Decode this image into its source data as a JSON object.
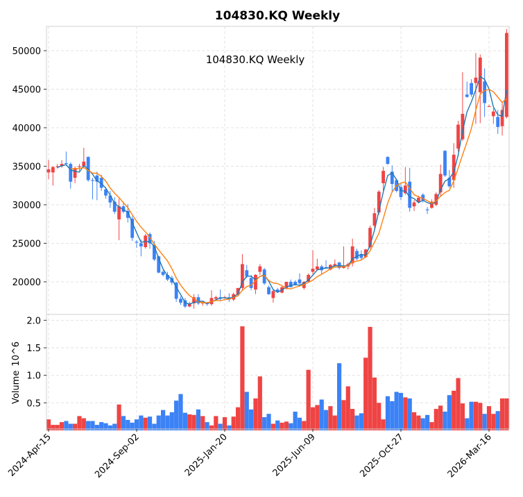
{
  "title": "104830.KQ  Weekly",
  "inner_title": "104830.KQ  Weekly",
  "colors": {
    "up": "#ef4444",
    "down": "#3b82f6",
    "ma_short": "#1f77b4",
    "ma_long": "#ff7f0e"
  },
  "chart_data": {
    "type": "candlestick",
    "title": "104830.KQ  Weekly",
    "ylabel_volume": "Volume",
    "volume_unit": "10^6",
    "price_ylim": [
      15800,
      53200
    ],
    "price_ticks": [
      "20000",
      "25000",
      "30000",
      "35000",
      "40000",
      "45000",
      "50000"
    ],
    "volume_ylim": [
      0,
      2.05
    ],
    "volume_ticks": [
      "0.5",
      "1.0",
      "1.5",
      "2.0"
    ],
    "x_tick_labels": [
      {
        "index": 0,
        "label": "2024-Apr-15"
      },
      {
        "index": 20,
        "label": "2024-Sep-02"
      },
      {
        "index": 40,
        "label": "2025-Jan-20"
      },
      {
        "index": 60,
        "label": "2025-Jun-09"
      },
      {
        "index": 80,
        "label": "2025-Oct-27"
      },
      {
        "index": 100,
        "label": "2026-Mar-16"
      }
    ],
    "ma_windows": [
      3,
      6
    ],
    "grid": true,
    "ohlc": [
      [
        34200,
        35800,
        33300,
        34600
      ],
      [
        34200,
        35000,
        32500,
        34900
      ],
      [
        35000,
        35300,
        34700,
        35000
      ],
      [
        35000,
        35800,
        34800,
        35300
      ],
      [
        35400,
        36900,
        35100,
        35300
      ],
      [
        35300,
        35500,
        32100,
        33000
      ],
      [
        33500,
        35000,
        32800,
        34700
      ],
      [
        34900,
        35300,
        34400,
        35000
      ],
      [
        35000,
        37400,
        34800,
        35600
      ],
      [
        36200,
        36300,
        33000,
        33200
      ],
      [
        33200,
        33500,
        30700,
        33100
      ],
      [
        33800,
        34300,
        30600,
        33000
      ],
      [
        33500,
        33900,
        31800,
        32200
      ],
      [
        32000,
        32300,
        30800,
        31200
      ],
      [
        31200,
        31800,
        29600,
        30300
      ],
      [
        30400,
        31000,
        28800,
        29100
      ],
      [
        28100,
        30800,
        25400,
        29800
      ],
      [
        29800,
        30400,
        28900,
        29100
      ],
      [
        29200,
        30100,
        27700,
        28300
      ],
      [
        28200,
        28500,
        25300,
        25700
      ],
      [
        25200,
        25400,
        24400,
        25100
      ],
      [
        25000,
        25500,
        23300,
        24600
      ],
      [
        24500,
        26200,
        24300,
        26000
      ],
      [
        26200,
        26400,
        24300,
        25000
      ],
      [
        24800,
        25300,
        22700,
        22900
      ],
      [
        23300,
        23400,
        21100,
        21200
      ],
      [
        21300,
        21500,
        20700,
        20900
      ],
      [
        20900,
        21300,
        20100,
        20300
      ],
      [
        20500,
        20800,
        19600,
        19900
      ],
      [
        19900,
        20000,
        17400,
        17800
      ],
      [
        17800,
        18100,
        17000,
        17300
      ],
      [
        17600,
        17900,
        16600,
        16800
      ],
      [
        16800,
        17400,
        16700,
        17200
      ],
      [
        17200,
        18400,
        16500,
        18000
      ],
      [
        18000,
        18400,
        17000,
        17200
      ],
      [
        17200,
        17500,
        16900,
        17300
      ],
      [
        17300,
        17400,
        16900,
        17100
      ],
      [
        17100,
        18900,
        16900,
        17900
      ],
      [
        17800,
        18200,
        17700,
        18000
      ],
      [
        18000,
        19000,
        17600,
        17800
      ],
      [
        18000,
        18200,
        17800,
        18000
      ],
      [
        18000,
        18500,
        17400,
        17700
      ],
      [
        17700,
        18600,
        17500,
        18400
      ],
      [
        18400,
        19200,
        18200,
        19200
      ],
      [
        19200,
        23600,
        18800,
        22300
      ],
      [
        21500,
        22200,
        20500,
        20700
      ],
      [
        20500,
        20900,
        18900,
        19200
      ],
      [
        19000,
        21000,
        18400,
        20900
      ],
      [
        21300,
        22300,
        20900,
        22000
      ],
      [
        21600,
        21800,
        19600,
        19800
      ],
      [
        19300,
        19500,
        18300,
        18400
      ],
      [
        17900,
        19000,
        17300,
        18800
      ],
      [
        19000,
        19200,
        18600,
        18700
      ],
      [
        18600,
        19400,
        18500,
        19300
      ],
      [
        19100,
        20000,
        19000,
        20000
      ],
      [
        20000,
        20300,
        19300,
        19300
      ],
      [
        20000,
        20200,
        19500,
        19600
      ],
      [
        20300,
        21100,
        19700,
        19800
      ],
      [
        19200,
        20100,
        19000,
        20000
      ],
      [
        20000,
        21100,
        19900,
        20900
      ],
      [
        21300,
        24100,
        21000,
        21700
      ],
      [
        21600,
        23000,
        21500,
        22000
      ],
      [
        22000,
        22200,
        20900,
        21500
      ],
      [
        21900,
        22800,
        21700,
        21800
      ],
      [
        21600,
        22300,
        21500,
        22200
      ],
      [
        22100,
        22900,
        21900,
        22300
      ],
      [
        22500,
        22600,
        21600,
        21800
      ],
      [
        21800,
        24600,
        21700,
        22100
      ],
      [
        22000,
        22500,
        21600,
        22300
      ],
      [
        22400,
        25600,
        22000,
        24600
      ],
      [
        24000,
        24300,
        22800,
        23000
      ],
      [
        23600,
        24100,
        22900,
        23100
      ],
      [
        23200,
        24300,
        23100,
        24200
      ],
      [
        24500,
        27300,
        24300,
        27000
      ],
      [
        27300,
        29600,
        26800,
        28900
      ],
      [
        29000,
        31900,
        28700,
        31700
      ],
      [
        32800,
        34900,
        31800,
        34400
      ],
      [
        36200,
        36300,
        35200,
        35300
      ],
      [
        34300,
        35100,
        31700,
        32700
      ],
      [
        33200,
        33400,
        31600,
        31800
      ],
      [
        32300,
        32700,
        30600,
        31000
      ],
      [
        31500,
        34900,
        31300,
        32500
      ],
      [
        33000,
        34800,
        29100,
        29600
      ],
      [
        29800,
        30600,
        29200,
        30300
      ],
      [
        30400,
        31200,
        30200,
        30900
      ],
      [
        31300,
        31500,
        30300,
        30600
      ],
      [
        29400,
        29700,
        28800,
        29300
      ],
      [
        29600,
        30700,
        29500,
        30400
      ],
      [
        30000,
        31600,
        29800,
        31400
      ],
      [
        31600,
        35200,
        31100,
        34000
      ],
      [
        37000,
        37100,
        33600,
        33800
      ],
      [
        33500,
        34500,
        32200,
        32400
      ],
      [
        33200,
        38000,
        32200,
        36500
      ],
      [
        37300,
        40900,
        36900,
        40400
      ],
      [
        38500,
        47200,
        38300,
        41800
      ],
      [
        44300,
        46000,
        43900,
        44000
      ],
      [
        45800,
        46300,
        44000,
        44300
      ],
      [
        45800,
        49700,
        40500,
        46500
      ],
      [
        44600,
        49500,
        40600,
        49100
      ],
      [
        46000,
        47700,
        41400,
        43200
      ],
      [
        42800,
        43000,
        42700,
        42800
      ],
      [
        41500,
        42500,
        40500,
        42100
      ],
      [
        41400,
        42300,
        39200,
        40100
      ],
      [
        40200,
        43300,
        39000,
        42300
      ],
      [
        41400,
        52800,
        41200,
        52300
      ]
    ],
    "volume": [
      0.2,
      0.1,
      0.1,
      0.15,
      0.17,
      0.12,
      0.12,
      0.26,
      0.22,
      0.17,
      0.17,
      0.1,
      0.15,
      0.13,
      0.09,
      0.12,
      0.47,
      0.26,
      0.19,
      0.14,
      0.2,
      0.27,
      0.23,
      0.25,
      0.12,
      0.27,
      0.37,
      0.27,
      0.33,
      0.54,
      0.66,
      0.32,
      0.29,
      0.28,
      0.38,
      0.26,
      0.15,
      0.09,
      0.26,
      0.12,
      0.24,
      0.09,
      0.25,
      0.42,
      1.89,
      0.7,
      0.38,
      0.58,
      0.98,
      0.24,
      0.3,
      0.12,
      0.18,
      0.14,
      0.16,
      0.13,
      0.34,
      0.23,
      0.17,
      1.1,
      0.42,
      0.46,
      0.56,
      0.37,
      0.44,
      0.27,
      1.22,
      0.55,
      0.8,
      0.39,
      0.27,
      0.31,
      1.32,
      1.88,
      0.96,
      0.5,
      0.2,
      0.62,
      0.53,
      0.7,
      0.68,
      0.6,
      0.58,
      0.33,
      0.27,
      0.22,
      0.28,
      0.15,
      0.39,
      0.45,
      0.34,
      0.64,
      0.72,
      0.95,
      0.49,
      0.22,
      0.52,
      0.52,
      0.5,
      0.3,
      0.44,
      0.3,
      0.35,
      0.58,
      0.58
    ]
  }
}
